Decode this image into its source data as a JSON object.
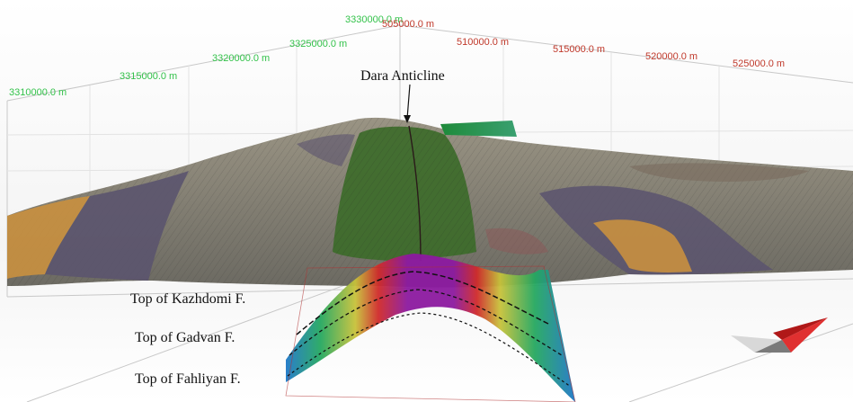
{
  "title": "Dara Anticline",
  "axis_y_ticks": [
    "3310000.0 m",
    "3315000.0 m",
    "3320000.0 m",
    "3325000.0 m",
    "3330000.0 m"
  ],
  "axis_x_ticks": [
    "505000.0 m",
    "510000.0 m",
    "515000.0 m",
    "520000.0 m",
    "525000.0 m"
  ],
  "horizons": [
    "Top of Kazhdomi F.",
    "Top of Gadvan F.",
    "Top of Fahliyan F."
  ],
  "colors": {
    "axis_y_text": "#33c24a",
    "axis_x_text": "#c0392b",
    "terrain_gray": "#8a8575",
    "geology_purple": "#5b546e",
    "geology_orange": "#c9903f",
    "anticline_core": "#3d6b2a",
    "section_high": "#8c1aa0",
    "section_low": "#2070c0"
  },
  "icons": [
    "arrow-icon",
    "compass-icon"
  ]
}
